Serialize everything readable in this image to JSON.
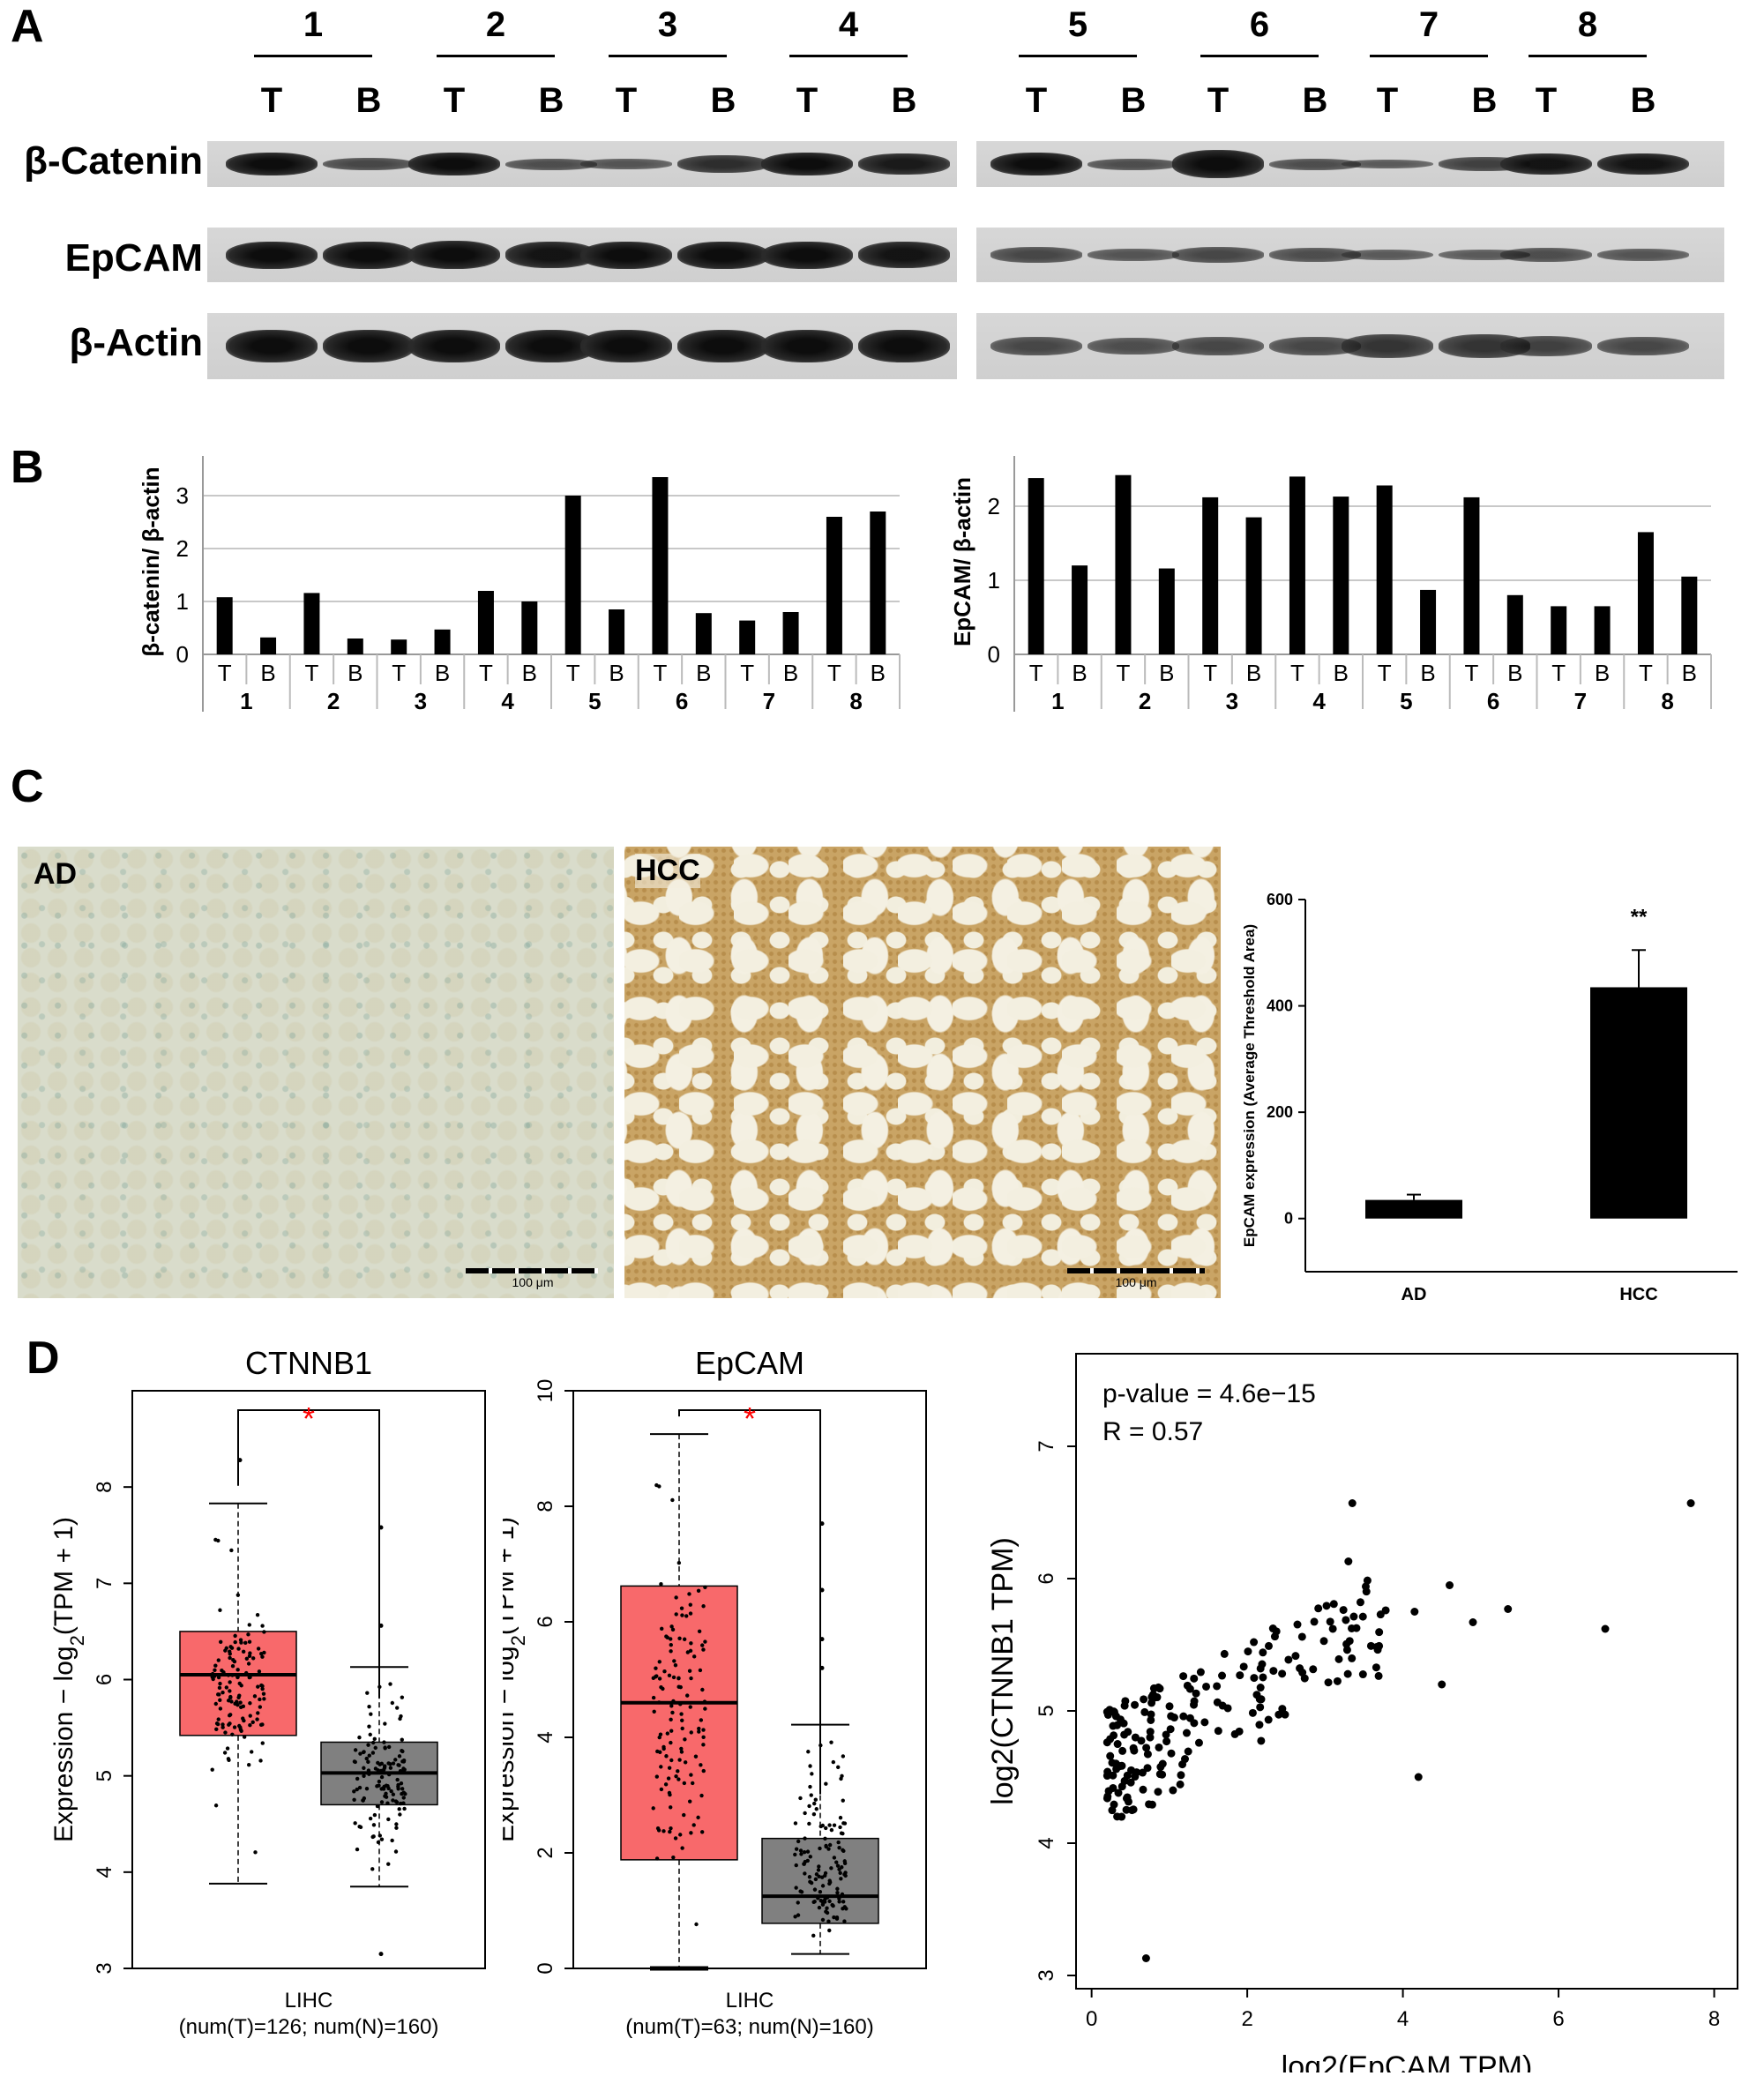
{
  "panels": {
    "A": "A",
    "B": "B",
    "C": "C",
    "D": "D"
  },
  "panelA": {
    "lanes": [
      "1",
      "2",
      "3",
      "4",
      "5",
      "6",
      "7",
      "8"
    ],
    "tb": [
      "T",
      "B"
    ],
    "blots": [
      "β-Catenin",
      "EpCAM",
      "β-Actin"
    ]
  },
  "panelC": {
    "left_label": "AD",
    "right_label": "HCC",
    "scalebar": "100 μm"
  },
  "chart_data": [
    {
      "type": "bar",
      "ylabel": "β-catenin/ β-actin",
      "groups": [
        "1",
        "2",
        "3",
        "4",
        "5",
        "6",
        "7",
        "8"
      ],
      "categories": [
        "T",
        "B",
        "T",
        "B",
        "T",
        "B",
        "T",
        "B",
        "T",
        "B",
        "T",
        "B",
        "T",
        "B",
        "T",
        "B"
      ],
      "values": [
        1.08,
        0.32,
        1.16,
        0.3,
        0.28,
        0.47,
        1.2,
        1.0,
        3.0,
        0.85,
        3.35,
        0.78,
        0.64,
        0.8,
        2.6,
        2.7
      ],
      "ylim": [
        0,
        3.5
      ],
      "yticks": [
        "0",
        "1",
        "2",
        "3"
      ],
      "grid": true
    },
    {
      "type": "bar",
      "ylabel": "EpCAM/ β-actin",
      "groups": [
        "1",
        "2",
        "3",
        "4",
        "5",
        "6",
        "7",
        "8"
      ],
      "categories": [
        "T",
        "B",
        "T",
        "B",
        "T",
        "B",
        "T",
        "B",
        "T",
        "B",
        "T",
        "B",
        "T",
        "B",
        "T",
        "B"
      ],
      "values": [
        2.38,
        1.2,
        2.42,
        1.16,
        2.12,
        1.85,
        2.4,
        2.13,
        2.28,
        0.87,
        2.12,
        0.8,
        0.65,
        0.65,
        1.65,
        1.05
      ],
      "ylim": [
        0,
        2.5
      ],
      "yticks": [
        "0",
        "1",
        "2"
      ],
      "grid": true
    },
    {
      "type": "bar",
      "ylabel": "EpCAM expression  (Average Threshold Area)",
      "categories": [
        "AD",
        "HCC"
      ],
      "values": [
        35,
        435
      ],
      "errors": [
        10,
        70
      ],
      "annotations": [
        "",
        "**"
      ],
      "ylim": [
        -100,
        600
      ],
      "yticks": [
        "0",
        "200",
        "400",
        "600"
      ]
    },
    {
      "type": "box",
      "title": "CTNNB1",
      "ylabel": "Expression − log2(TPM + 1)",
      "xlabel": "LIHC",
      "xsub": "(num(T)=126; num(N)=160)",
      "significance": "*",
      "ylim": [
        3,
        9
      ],
      "yticks": [
        "3",
        "4",
        "5",
        "6",
        "7",
        "8"
      ],
      "series": [
        {
          "name": "T",
          "color": "#f8696b",
          "min": 3.88,
          "q1": 5.42,
          "median": 6.05,
          "q3": 6.5,
          "max": 7.83,
          "outliers": [
            8.28
          ]
        },
        {
          "name": "N",
          "color": "#808080",
          "min": 3.85,
          "q1": 4.7,
          "median": 5.03,
          "q3": 5.35,
          "max": 6.13,
          "outliers": [
            7.58,
            6.56,
            3.15
          ]
        }
      ]
    },
    {
      "type": "box",
      "title": "EpCAM",
      "ylabel": "Expression − log2(TPM + 1)",
      "xlabel": "LIHC",
      "xsub": "(num(T)=63; num(N)=160)",
      "significance": "*",
      "ylim": [
        0,
        10
      ],
      "yticks": [
        "0",
        "2",
        "4",
        "6",
        "8",
        "10"
      ],
      "series": [
        {
          "name": "T",
          "color": "#f8696b",
          "min": 0.0,
          "q1": 1.88,
          "median": 4.6,
          "q3": 6.62,
          "max": 9.25,
          "outliers": []
        },
        {
          "name": "N",
          "color": "#808080",
          "min": 0.25,
          "q1": 0.78,
          "median": 1.25,
          "q3": 2.25,
          "max": 4.22,
          "outliers": [
            7.7,
            6.55,
            5.7,
            5.2
          ]
        }
      ]
    },
    {
      "type": "scatter",
      "xlabel": "log2(EpCAM TPM)",
      "ylabel": "log2(CTNNB1 TPM)",
      "annotation_p": "p-value = 4.6e−15",
      "annotation_r": "R = 0.57",
      "xlim": [
        0,
        8
      ],
      "ylim": [
        3,
        7.5
      ],
      "xticks": [
        "0",
        "2",
        "4",
        "6",
        "8"
      ],
      "yticks": [
        "3",
        "4",
        "5",
        "6",
        "7"
      ]
    }
  ]
}
